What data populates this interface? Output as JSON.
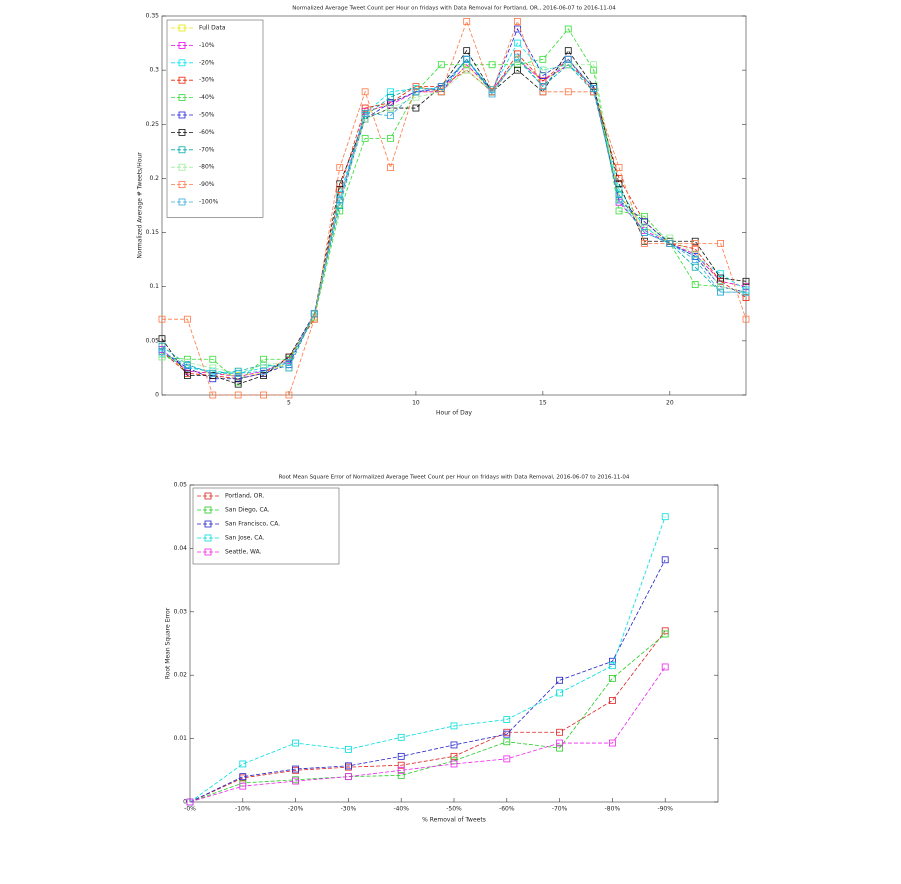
{
  "chart_data": [
    {
      "type": "line",
      "title": "Normalized Average Tweet Count per Hour on fridays with Data Removal for Portland, OR., 2016-06-07 to 2016-11-04",
      "x_label": "Hour of Day",
      "y_label": "Normalized Average # Tweets/Hour",
      "x": [
        0,
        1,
        2,
        3,
        4,
        5,
        6,
        7,
        8,
        9,
        10,
        11,
        12,
        13,
        14,
        15,
        16,
        17,
        18,
        19,
        20,
        21,
        22,
        23
      ],
      "xlim": [
        0,
        23
      ],
      "xticks": [
        5,
        10,
        15,
        20
      ],
      "ylim": [
        0,
        0.35
      ],
      "yticks": [
        0,
        0.05,
        0.1,
        0.15,
        0.2,
        0.25,
        0.3,
        0.35
      ],
      "legend": "upper left",
      "series": [
        {
          "name": "Full Data",
          "color": "#e6e600",
          "values": [
            0.04,
            0.022,
            0.02,
            0.018,
            0.02,
            0.03,
            0.075,
            0.18,
            0.26,
            0.27,
            0.28,
            0.28,
            0.305,
            0.28,
            0.31,
            0.29,
            0.305,
            0.285,
            0.185,
            0.155,
            0.14,
            0.13,
            0.105,
            0.1
          ]
        },
        {
          "name": "-10%",
          "color": "#ee00ee",
          "values": [
            0.042,
            0.022,
            0.02,
            0.017,
            0.022,
            0.032,
            0.075,
            0.18,
            0.262,
            0.268,
            0.28,
            0.28,
            0.305,
            0.282,
            0.31,
            0.29,
            0.305,
            0.285,
            0.178,
            0.152,
            0.14,
            0.13,
            0.105,
            0.1
          ]
        },
        {
          "name": "-20%",
          "color": "#00e5ee",
          "values": [
            0.038,
            0.025,
            0.022,
            0.02,
            0.025,
            0.03,
            0.075,
            0.185,
            0.26,
            0.28,
            0.283,
            0.283,
            0.31,
            0.282,
            0.325,
            0.3,
            0.305,
            0.285,
            0.19,
            0.155,
            0.14,
            0.128,
            0.112,
            0.097
          ]
        },
        {
          "name": "-30%",
          "color": "#ee2200",
          "values": [
            0.04,
            0.02,
            0.018,
            0.015,
            0.02,
            0.035,
            0.07,
            0.19,
            0.265,
            0.27,
            0.285,
            0.285,
            0.3,
            0.28,
            0.315,
            0.29,
            0.31,
            0.28,
            0.2,
            0.16,
            0.14,
            0.135,
            0.105,
            0.09
          ]
        },
        {
          "name": "-40%",
          "color": "#33dd33",
          "values": [
            0.035,
            0.033,
            0.033,
            0.012,
            0.033,
            0.033,
            0.072,
            0.17,
            0.237,
            0.237,
            0.28,
            0.305,
            0.305,
            0.305,
            0.305,
            0.31,
            0.338,
            0.3,
            0.17,
            0.165,
            0.14,
            0.102,
            0.1,
            0.095
          ]
        },
        {
          "name": "-50%",
          "color": "#2222dd",
          "values": [
            0.04,
            0.025,
            0.015,
            0.015,
            0.02,
            0.028,
            0.075,
            0.18,
            0.255,
            0.27,
            0.28,
            0.283,
            0.31,
            0.28,
            0.338,
            0.295,
            0.31,
            0.283,
            0.18,
            0.16,
            0.14,
            0.128,
            0.1,
            0.095
          ]
        },
        {
          "name": "-60%",
          "color": "#111111",
          "values": [
            0.052,
            0.018,
            0.018,
            0.01,
            0.018,
            0.035,
            0.075,
            0.195,
            0.255,
            0.265,
            0.265,
            0.285,
            0.318,
            0.28,
            0.3,
            0.28,
            0.318,
            0.285,
            0.195,
            0.142,
            0.142,
            0.142,
            0.108,
            0.105
          ]
        },
        {
          "name": "-70%",
          "color": "#00aaaa",
          "values": [
            0.045,
            0.028,
            0.02,
            0.022,
            0.028,
            0.025,
            0.075,
            0.175,
            0.258,
            0.275,
            0.285,
            0.28,
            0.31,
            0.28,
            0.31,
            0.285,
            0.305,
            0.28,
            0.185,
            0.15,
            0.14,
            0.118,
            0.095,
            0.095
          ]
        },
        {
          "name": "-80%",
          "color": "#99ee99",
          "values": [
            0.035,
            0.03,
            0.025,
            0.02,
            0.028,
            0.03,
            0.075,
            0.18,
            0.255,
            0.265,
            0.275,
            0.28,
            0.3,
            0.28,
            0.31,
            0.3,
            0.305,
            0.305,
            0.18,
            0.155,
            0.145,
            0.13,
            0.1,
            0.095
          ]
        },
        {
          "name": "-90%",
          "color": "#ff7744",
          "values": [
            0.07,
            0.07,
            0,
            0,
            0,
            0,
            0.07,
            0.21,
            0.28,
            0.21,
            0.285,
            0.28,
            0.345,
            0.28,
            0.345,
            0.28,
            0.28,
            0.28,
            0.21,
            0.14,
            0.14,
            0.14,
            0.14,
            0.07
          ]
        },
        {
          "name": "-100%",
          "color": "#33aadd",
          "values": [
            0.04,
            0.027,
            0.02,
            0.02,
            0.022,
            0.03,
            0.075,
            0.18,
            0.26,
            0.258,
            0.28,
            0.285,
            0.31,
            0.278,
            0.312,
            0.285,
            0.31,
            0.283,
            0.18,
            0.15,
            0.14,
            0.125,
            0.095,
            0.095
          ]
        }
      ]
    },
    {
      "type": "line",
      "title": "Root Mean Square Error of Normalized Average Tweet Count per Hour on fridays with Data Removal, 2016-06-07 to 2016-11-04",
      "x_label": "% Removal of Tweets",
      "y_label": "Root Mean Square Error",
      "categories": [
        "-0%",
        "-10%",
        "-20%",
        "-30%",
        "-40%",
        "-50%",
        "-60%",
        "-70%",
        "-80%",
        "-90%"
      ],
      "ylim": [
        0,
        0.05
      ],
      "yticks": [
        0,
        0.01,
        0.02,
        0.03,
        0.04,
        0.05
      ],
      "legend": "upper left",
      "series": [
        {
          "name": "Portland, OR.",
          "color": "#dd2222",
          "values": [
            0,
            0.0038,
            0.005,
            0.0055,
            0.0058,
            0.0072,
            0.011,
            0.011,
            0.016,
            0.027
          ]
        },
        {
          "name": "San Diego, CA.",
          "color": "#22cc22",
          "values": [
            0,
            0.003,
            0.0035,
            0.004,
            0.0042,
            0.0065,
            0.0095,
            0.0085,
            0.0195,
            0.0265
          ]
        },
        {
          "name": "San Francisco, CA.",
          "color": "#2222cc",
          "values": [
            0,
            0.004,
            0.0052,
            0.0057,
            0.0072,
            0.009,
            0.0107,
            0.0192,
            0.0222,
            0.0382
          ]
        },
        {
          "name": "San Jose, CA.",
          "color": "#00dddd",
          "values": [
            0,
            0.006,
            0.0093,
            0.0083,
            0.0102,
            0.012,
            0.013,
            0.0172,
            0.0215,
            0.045
          ]
        },
        {
          "name": "Seattle, WA.",
          "color": "#ee22ee",
          "values": [
            0,
            0.0025,
            0.0033,
            0.004,
            0.005,
            0.006,
            0.0068,
            0.0093,
            0.0093,
            0.0213
          ]
        }
      ]
    }
  ]
}
